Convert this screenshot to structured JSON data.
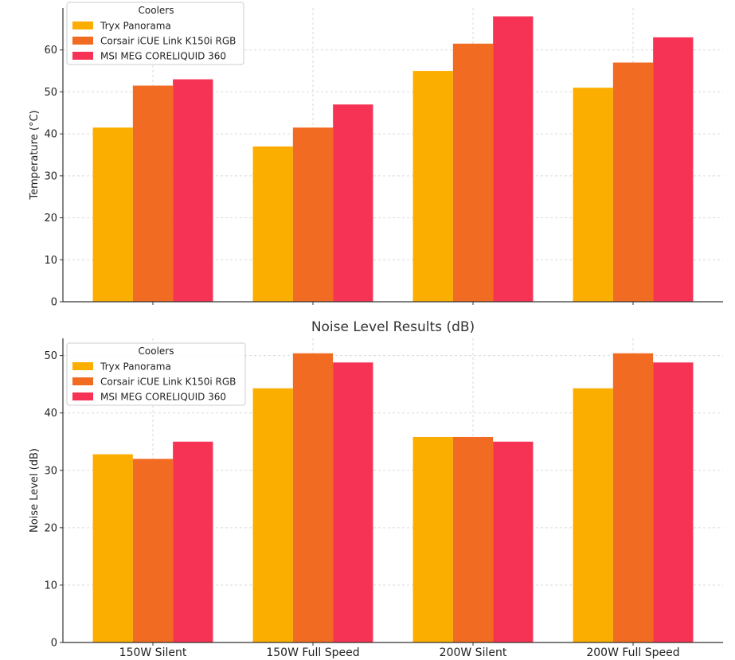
{
  "chart_data": [
    {
      "type": "bar",
      "title": "",
      "xlabel": "",
      "ylabel": "Temperature (°C)",
      "ylim": [
        0,
        70
      ],
      "yticks": [
        0,
        10,
        20,
        30,
        40,
        50,
        60
      ],
      "grid": true,
      "legend": {
        "title": "Coolers",
        "placement": "top-left"
      },
      "categories": [
        "150W Silent",
        "150W Full Speed",
        "200W Silent",
        "200W Full Speed"
      ],
      "show_category_labels": false,
      "series": [
        {
          "name": "Tryx Panorama",
          "color": "#FBAE00",
          "values": [
            41.5,
            37,
            55,
            51
          ]
        },
        {
          "name": "Corsair iCUE Link K150i RGB",
          "color": "#F26B22",
          "values": [
            51.5,
            41.5,
            61.5,
            57
          ]
        },
        {
          "name": "MSI MEG CORELIQUID 360",
          "color": "#F63355",
          "values": [
            53,
            47,
            68,
            63
          ]
        }
      ]
    },
    {
      "type": "bar",
      "title": "Noise Level Results (dB)",
      "xlabel": "",
      "ylabel": "Noise Level (dB)",
      "ylim": [
        0,
        53
      ],
      "yticks": [
        0,
        10,
        20,
        30,
        40,
        50
      ],
      "grid": true,
      "legend": {
        "title": "Coolers",
        "placement": "top-left"
      },
      "categories": [
        "150W Silent",
        "150W Full Speed",
        "200W Silent",
        "200W Full Speed"
      ],
      "show_category_labels": true,
      "series": [
        {
          "name": "Tryx Panorama",
          "color": "#FBAE00",
          "values": [
            32.8,
            44.3,
            35.8,
            44.3
          ]
        },
        {
          "name": "Corsair iCUE Link K150i RGB",
          "color": "#F26B22",
          "values": [
            32,
            50.4,
            35.8,
            50.4
          ]
        },
        {
          "name": "MSI MEG CORELIQUID 360",
          "color": "#F63355",
          "values": [
            35,
            48.8,
            35,
            48.8
          ]
        }
      ]
    }
  ]
}
